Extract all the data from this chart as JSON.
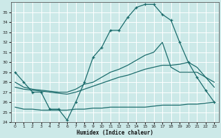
{
  "xlabel": "Humidex (Indice chaleur)",
  "bg_color": "#cce9e8",
  "line_color": "#1a6b6b",
  "xlim": [
    -0.5,
    23.5
  ],
  "ylim": [
    24,
    36
  ],
  "yticks": [
    24,
    25,
    26,
    27,
    28,
    29,
    30,
    31,
    32,
    33,
    34,
    35
  ],
  "xticks": [
    0,
    1,
    2,
    3,
    4,
    5,
    6,
    7,
    8,
    9,
    10,
    11,
    12,
    13,
    14,
    15,
    16,
    17,
    18,
    19,
    20,
    21,
    22,
    23
  ],
  "line1_x": [
    0,
    1,
    2,
    3,
    4,
    5,
    6,
    7,
    8,
    9,
    10,
    11,
    12,
    13,
    14,
    15,
    16,
    17,
    18,
    19,
    20,
    21,
    22,
    23
  ],
  "line1_y": [
    29,
    28,
    27,
    27,
    25.3,
    25.3,
    24.2,
    26.0,
    28.0,
    30.5,
    31.5,
    33.2,
    33.2,
    34.5,
    35.5,
    35.8,
    35.8,
    34.8,
    34.2,
    32.0,
    30.0,
    28.5,
    27.2,
    26.0
  ],
  "line2_x": [
    0,
    1,
    2,
    3,
    4,
    5,
    6,
    7,
    8,
    9,
    10,
    11,
    12,
    13,
    14,
    15,
    16,
    17,
    18,
    19,
    20,
    21,
    22,
    23
  ],
  "line2_y": [
    28.0,
    27.5,
    27.3,
    27.2,
    27.1,
    27.0,
    27.0,
    27.3,
    27.8,
    28.0,
    28.5,
    29.0,
    29.3,
    29.7,
    30.2,
    30.7,
    31.0,
    32.0,
    29.5,
    29.0,
    29.0,
    29.0,
    28.5,
    28.0
  ],
  "line3_x": [
    0,
    1,
    2,
    3,
    4,
    5,
    6,
    7,
    8,
    9,
    10,
    11,
    12,
    13,
    14,
    15,
    16,
    17,
    18,
    19,
    20,
    21,
    22,
    23
  ],
  "line3_y": [
    27.5,
    27.3,
    27.2,
    27.1,
    27.0,
    26.9,
    26.8,
    27.0,
    27.3,
    27.6,
    27.9,
    28.2,
    28.5,
    28.7,
    29.0,
    29.3,
    29.5,
    29.7,
    29.7,
    29.8,
    30.0,
    29.5,
    28.5,
    27.5
  ],
  "line4_x": [
    0,
    1,
    2,
    3,
    4,
    5,
    6,
    7,
    8,
    9,
    10,
    11,
    12,
    13,
    14,
    15,
    16,
    17,
    18,
    19,
    20,
    21,
    22,
    23
  ],
  "line4_y": [
    25.5,
    25.3,
    25.3,
    25.2,
    25.2,
    25.2,
    25.2,
    25.3,
    25.3,
    25.4,
    25.4,
    25.5,
    25.5,
    25.5,
    25.5,
    25.5,
    25.6,
    25.7,
    25.7,
    25.7,
    25.8,
    25.8,
    25.9,
    26.0
  ]
}
